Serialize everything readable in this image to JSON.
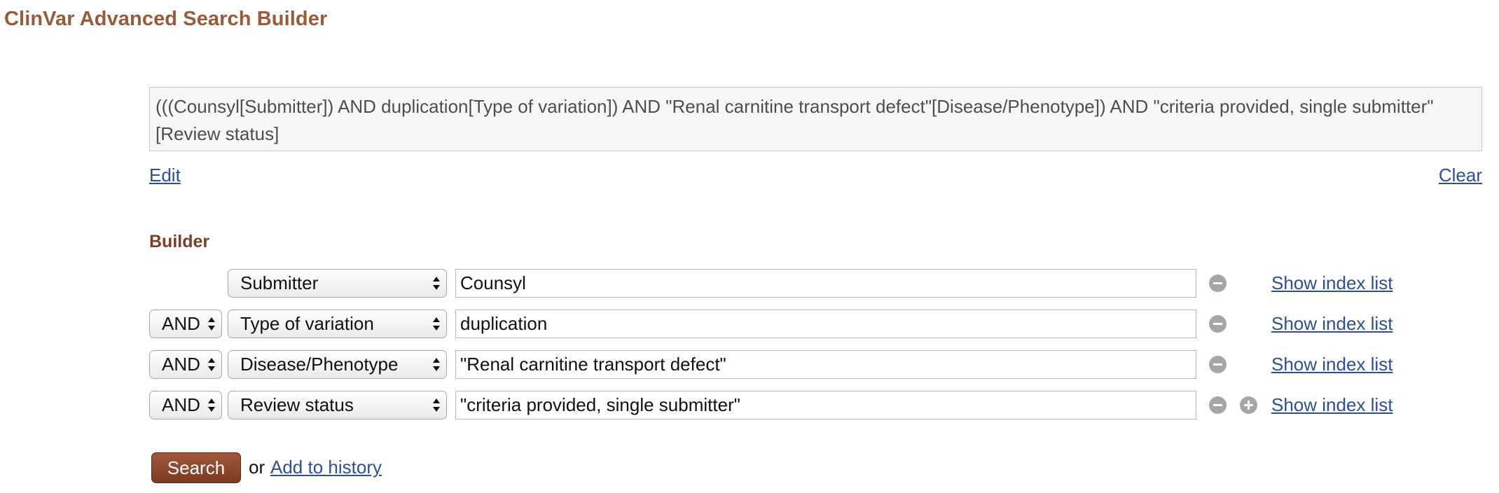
{
  "header": {
    "title": "ClinVar Advanced Search Builder"
  },
  "query": {
    "text": "(((Counsyl[Submitter]) AND duplication[Type of variation]) AND \"Renal carnitine transport defect\"[Disease/Phenotype]) AND \"criteria provided, single submitter\"[Review status]",
    "edit_label": "Edit",
    "clear_label": "Clear"
  },
  "builder": {
    "heading": "Builder",
    "index_link_label": "Show index list",
    "rows": [
      {
        "operator": "",
        "field": "Submitter",
        "term": "Counsyl"
      },
      {
        "operator": "AND",
        "field": "Type of variation",
        "term": "duplication"
      },
      {
        "operator": "AND",
        "field": "Disease/Phenotype",
        "term": "\"Renal carnitine transport defect\""
      },
      {
        "operator": "AND",
        "field": "Review status",
        "term": "\"criteria provided, single submitter\""
      }
    ]
  },
  "actions": {
    "search_label": "Search",
    "or_text": "or",
    "history_label": "Add to history"
  },
  "icons": {
    "remove": "minus-circle-icon",
    "add": "plus-circle-icon",
    "select_arrows": "up-down-arrows-icon"
  },
  "colors": {
    "title": "#9b5a3a",
    "heading": "#7a3f27",
    "link": "#2d4f93",
    "search_button": "#8c4529",
    "icon_gray": "#a6a6a6"
  }
}
